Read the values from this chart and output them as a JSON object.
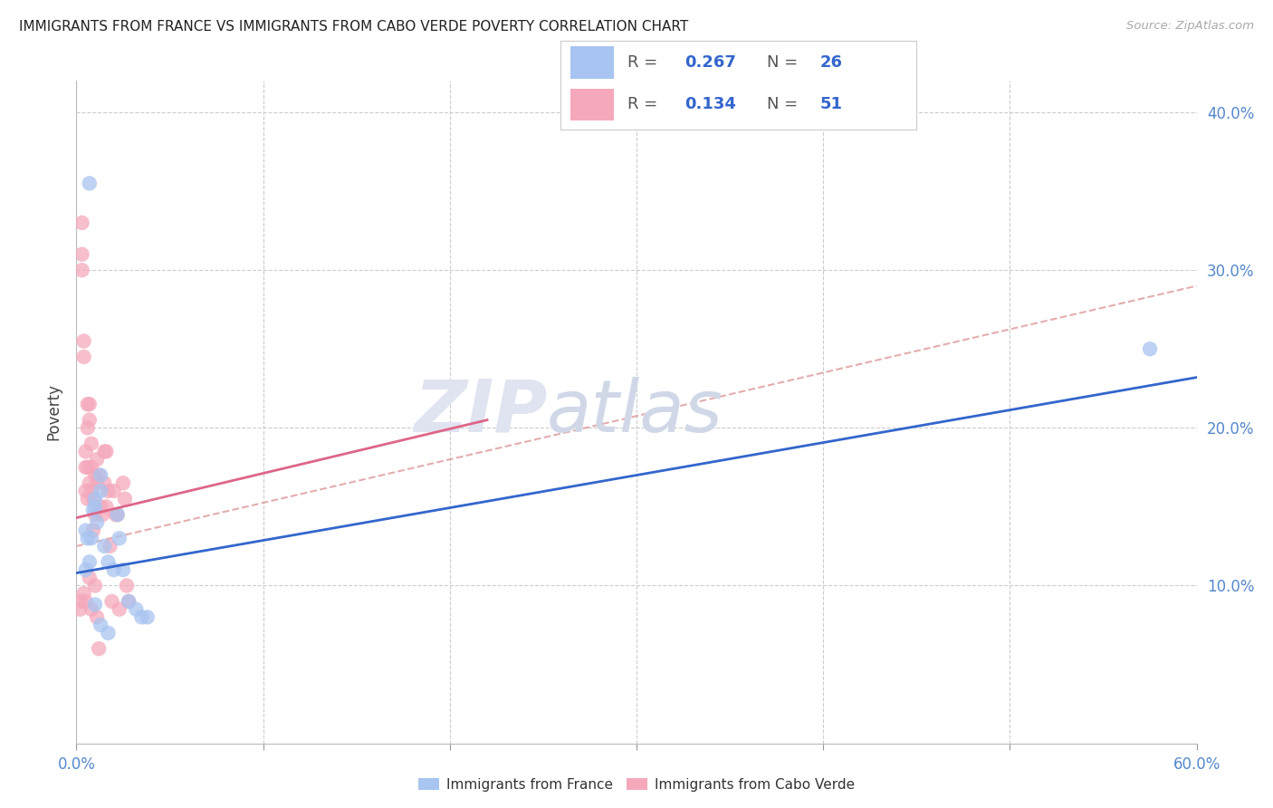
{
  "title": "IMMIGRANTS FROM FRANCE VS IMMIGRANTS FROM CABO VERDE POVERTY CORRELATION CHART",
  "source": "Source: ZipAtlas.com",
  "ylabel_label": "Poverty",
  "x_min": 0.0,
  "x_max": 0.6,
  "y_min": 0.0,
  "y_max": 0.42,
  "x_ticks": [
    0.0,
    0.1,
    0.2,
    0.3,
    0.4,
    0.5,
    0.6
  ],
  "x_tick_labels": [
    "0.0%",
    "",
    "",
    "",
    "",
    "",
    "60.0%"
  ],
  "y_ticks": [
    0.0,
    0.1,
    0.2,
    0.3,
    0.4
  ],
  "y_tick_labels": [
    "",
    "10.0%",
    "20.0%",
    "30.0%",
    "40.0%"
  ],
  "france_R": "0.267",
  "france_N": "26",
  "caboverde_R": "0.134",
  "caboverde_N": "51",
  "france_color": "#a8c4f0",
  "caboverde_color": "#f5a8bc",
  "france_line_color": "#3366cc",
  "caboverde_line_color": "#dd6688",
  "caboverde_dash_color": "#dd9999",
  "watermark_zip": "ZIP",
  "watermark_atlas": "atlas",
  "france_points_x": [
    0.005,
    0.007,
    0.008,
    0.01,
    0.013,
    0.005,
    0.006,
    0.007,
    0.009,
    0.01,
    0.011,
    0.013,
    0.015,
    0.017,
    0.02,
    0.022,
    0.023,
    0.025,
    0.028,
    0.032,
    0.035,
    0.038,
    0.01,
    0.013,
    0.017,
    0.575
  ],
  "france_points_y": [
    0.135,
    0.355,
    0.13,
    0.15,
    0.17,
    0.11,
    0.13,
    0.115,
    0.148,
    0.155,
    0.14,
    0.16,
    0.125,
    0.115,
    0.11,
    0.145,
    0.13,
    0.11,
    0.09,
    0.085,
    0.08,
    0.08,
    0.088,
    0.075,
    0.07,
    0.25
  ],
  "caboverde_points_x": [
    0.002,
    0.002,
    0.003,
    0.003,
    0.003,
    0.004,
    0.004,
    0.004,
    0.005,
    0.005,
    0.005,
    0.005,
    0.006,
    0.006,
    0.006,
    0.006,
    0.007,
    0.007,
    0.007,
    0.007,
    0.008,
    0.008,
    0.008,
    0.008,
    0.009,
    0.009,
    0.01,
    0.01,
    0.01,
    0.011,
    0.011,
    0.011,
    0.012,
    0.012,
    0.013,
    0.014,
    0.015,
    0.015,
    0.016,
    0.016,
    0.017,
    0.018,
    0.019,
    0.02,
    0.021,
    0.022,
    0.023,
    0.025,
    0.026,
    0.027,
    0.028
  ],
  "caboverde_points_y": [
    0.085,
    0.09,
    0.33,
    0.31,
    0.3,
    0.255,
    0.245,
    0.095,
    0.185,
    0.175,
    0.16,
    0.09,
    0.215,
    0.2,
    0.175,
    0.155,
    0.215,
    0.205,
    0.165,
    0.105,
    0.19,
    0.175,
    0.16,
    0.085,
    0.155,
    0.135,
    0.17,
    0.145,
    0.1,
    0.18,
    0.165,
    0.08,
    0.17,
    0.06,
    0.15,
    0.145,
    0.185,
    0.165,
    0.185,
    0.15,
    0.16,
    0.125,
    0.09,
    0.16,
    0.145,
    0.145,
    0.085,
    0.165,
    0.155,
    0.1,
    0.09
  ],
  "france_line_x": [
    0.0,
    0.6
  ],
  "france_line_y": [
    0.108,
    0.232
  ],
  "caboverde_solid_line_x": [
    0.0,
    0.22
  ],
  "caboverde_solid_line_y": [
    0.143,
    0.205
  ],
  "caboverde_dash_line_x": [
    0.0,
    0.6
  ],
  "caboverde_dash_line_y": [
    0.125,
    0.29
  ]
}
